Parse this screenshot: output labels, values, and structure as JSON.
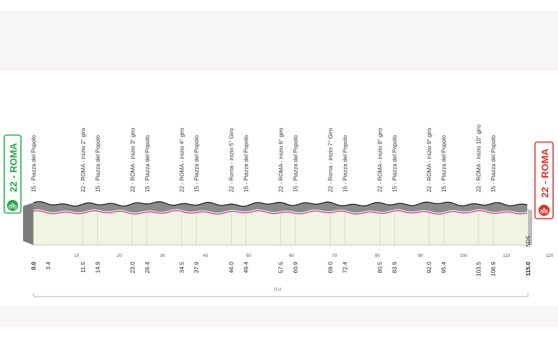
{
  "start_label": "22 - ROMA",
  "finish_label": "22 - ROMA",
  "sds_label": "SDS",
  "rm_label": "RM",
  "chart_data": {
    "type": "area",
    "x_range": [
      0,
      115
    ],
    "distance_ticks": [
      "0.0",
      "3.4",
      "11.5",
      "14.9",
      "23.0",
      "26.4",
      "34.5",
      "37.9",
      "46.0",
      "49.4",
      "57.5",
      "60.9",
      "69.0",
      "72.4",
      "80.5",
      "83.9",
      "92.0",
      "95.4",
      "103.5",
      "106.9",
      "115.0"
    ],
    "grid_ticks": [
      10,
      20,
      30,
      40,
      50,
      60,
      70,
      80,
      90,
      100,
      110,
      120
    ],
    "waypoints": [
      {
        "km": 0.0,
        "label": "15 - Piazza del Popolo"
      },
      {
        "km": 11.5,
        "label": "22 - ROMA - inizio 2° giro"
      },
      {
        "km": 14.9,
        "label": "15 - Piazza del Popolo"
      },
      {
        "km": 23.0,
        "label": "22 - ROMA - inizio 3° giro"
      },
      {
        "km": 26.4,
        "label": "15 - Piazza del Popolo"
      },
      {
        "km": 34.5,
        "label": "22 - ROMA - inizio 4° giro"
      },
      {
        "km": 37.9,
        "label": "15 - Piazza del Popolo"
      },
      {
        "km": 46.0,
        "label": "22 - Roma - inizio 5° Giro"
      },
      {
        "km": 49.4,
        "label": "15 - Piazza del Popolo"
      },
      {
        "km": 57.5,
        "label": "22 - ROMA - inizio 6° giro"
      },
      {
        "km": 60.9,
        "label": "15 - Piazza del Popolo"
      },
      {
        "km": 69.0,
        "label": "22 - Roma - inizio 7° Giro"
      },
      {
        "km": 72.4,
        "label": "15 - Piazza del Popolo"
      },
      {
        "km": 80.5,
        "label": "22 - ROMA - inizio 8° giro"
      },
      {
        "km": 83.9,
        "label": "15 - Piazza del Popolo"
      },
      {
        "km": 92.0,
        "label": "22 - ROMA - inizio 9° giro"
      },
      {
        "km": 95.4,
        "label": "15 - Piazza del Popolo"
      },
      {
        "km": 103.5,
        "label": "22 - ROMA - inizio 10° giro"
      },
      {
        "km": 106.9,
        "label": "15 - Piazza del Popolo"
      }
    ],
    "colors": {
      "profile": "#f1f4e2",
      "top_band": "#8a8a8a",
      "top_line": "#1a1a1a",
      "route_line": "#cc3399",
      "start": "#2aa84a",
      "finish": "#d9342b"
    }
  }
}
